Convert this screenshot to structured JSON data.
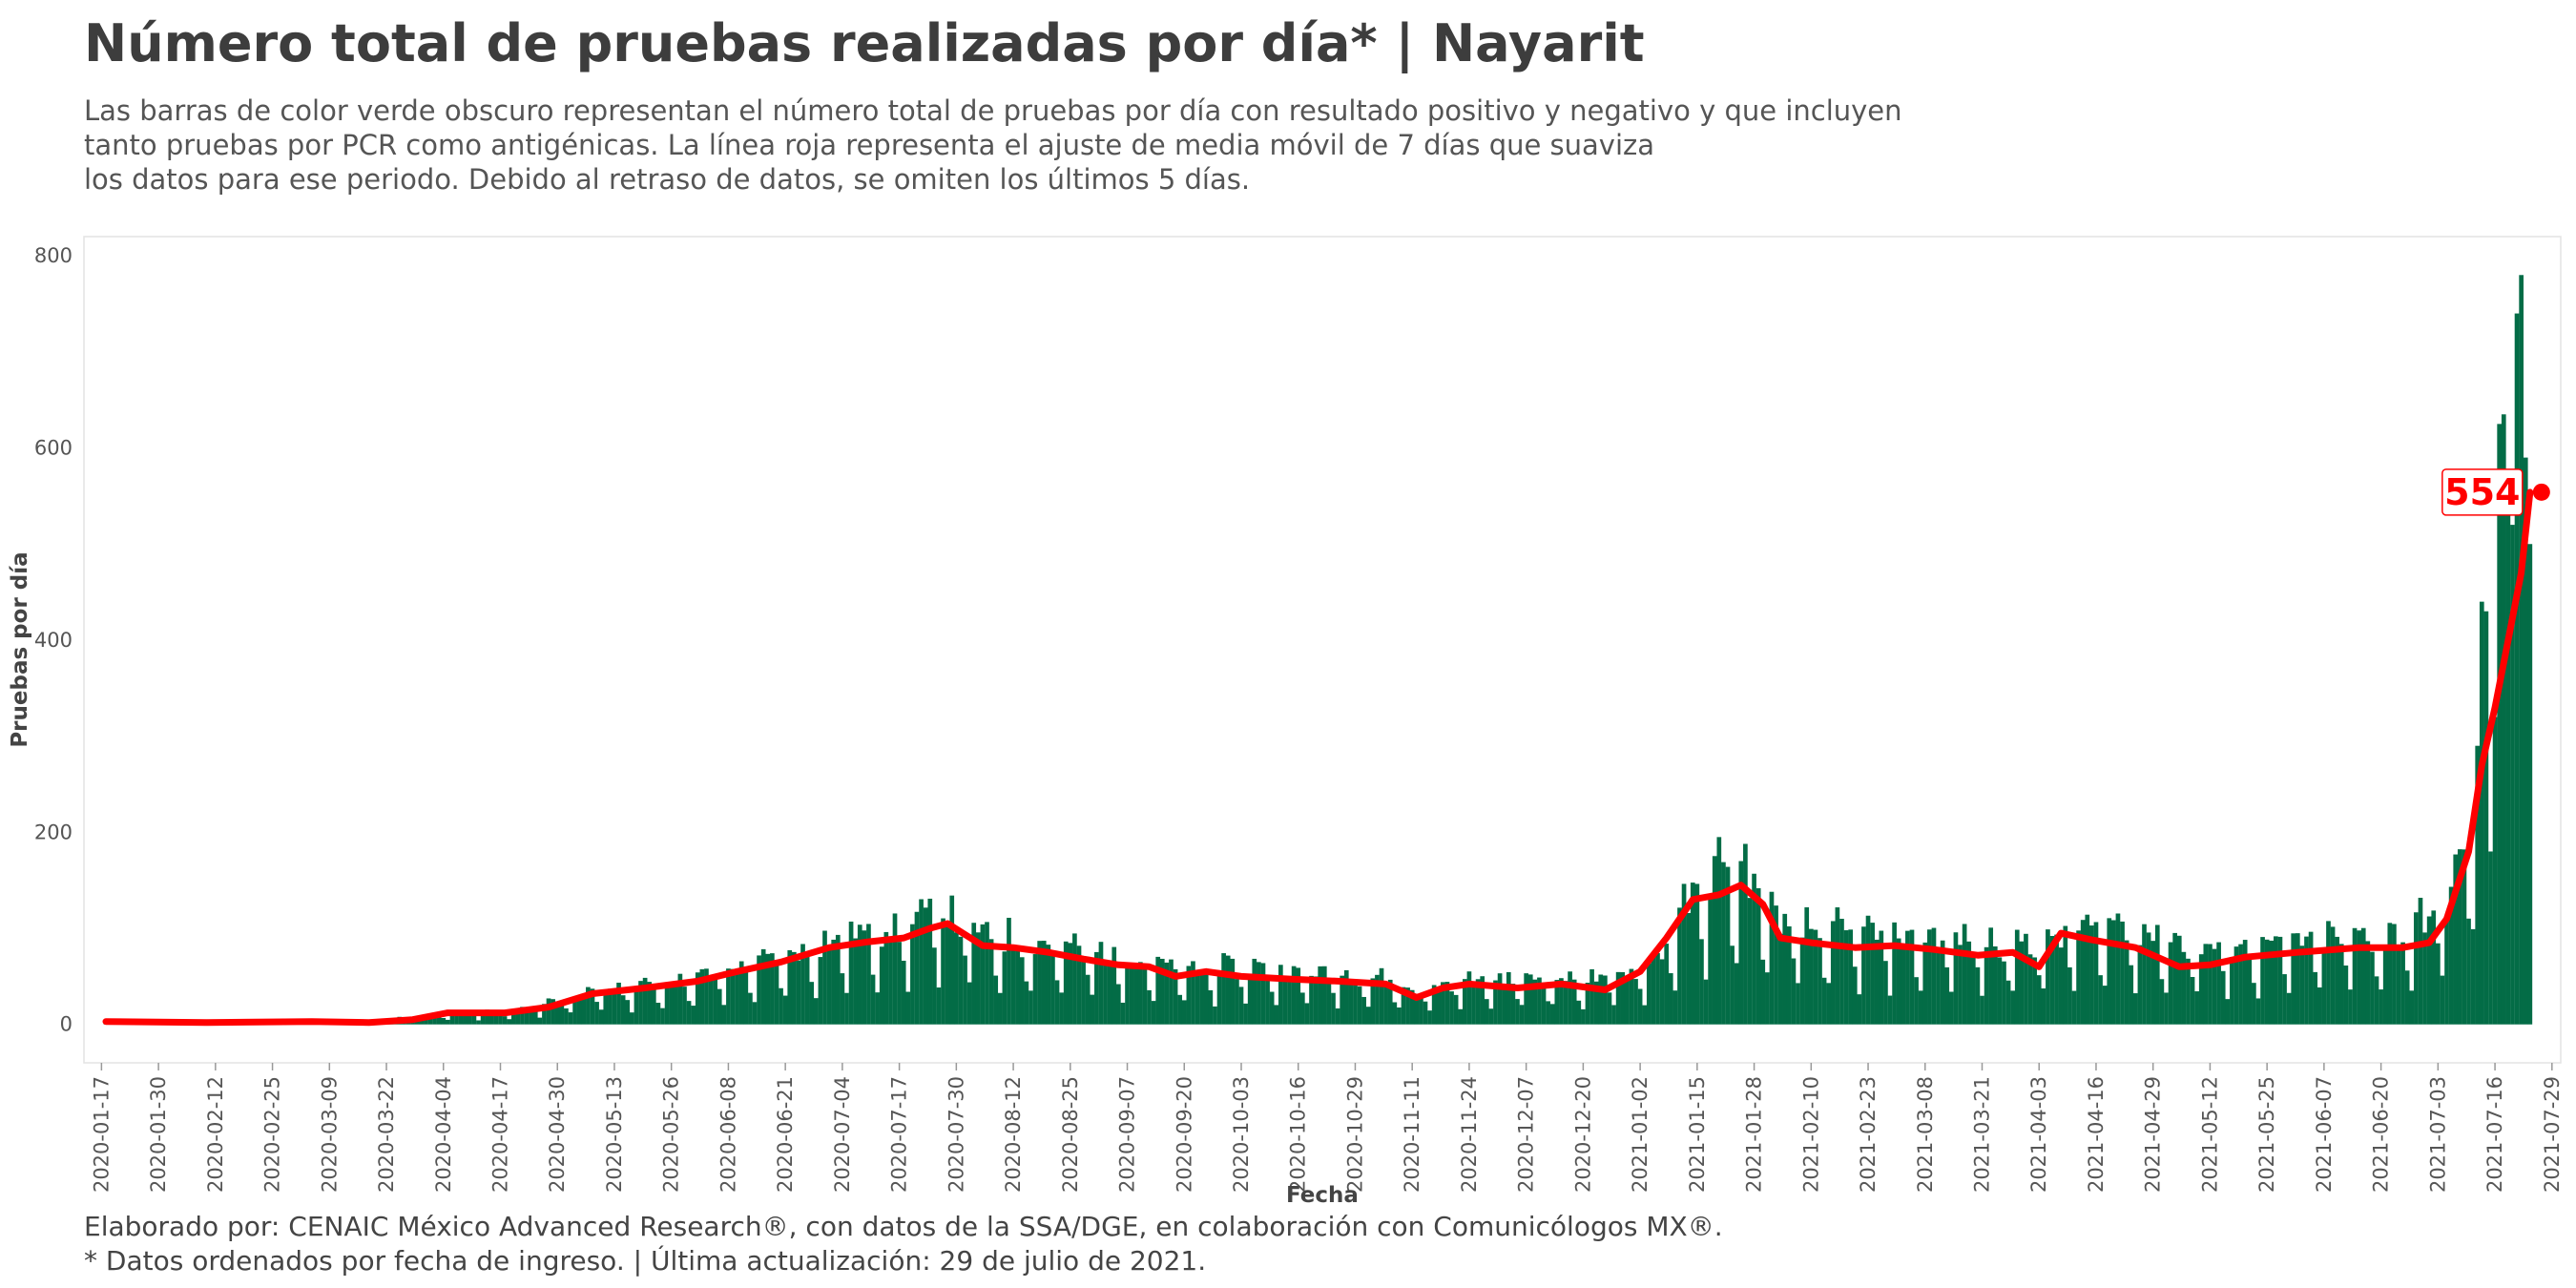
{
  "title": "Número total de pruebas realizadas por día* | Nayarit",
  "subtitle": "Las barras de color verde obscuro representan el número total de pruebas por día con resultado positivo y negativo y que incluyen\ntanto pruebas por PCR como antigénicas. La línea roja representa el ajuste de media móvil de 7 días que suaviza\nlos datos para ese periodo. Debido al retraso de datos, se omiten los últimos 5 días.",
  "caption": "Elaborado por: CENAIC México Advanced Research®, con datos de la SSA/DGE, en colaboración con Comunicólogos MX®.\n* Datos ordenados por fecha de ingreso. | Última actualización: 29 de julio de 2021.",
  "chart_data": {
    "type": "bar",
    "xlabel": "Fecha",
    "ylabel": "Pruebas por día",
    "x_start": "2020-01-18",
    "x_end": "2021-07-24",
    "xlim": [
      "2020-01-13",
      "2021-07-31"
    ],
    "ylim": [
      -40,
      820
    ],
    "yticks": [
      0,
      200,
      400,
      600,
      800
    ],
    "xticks": [
      "2020-01-17",
      "2020-01-30",
      "2020-02-12",
      "2020-02-25",
      "2020-03-09",
      "2020-03-22",
      "2020-04-04",
      "2020-04-17",
      "2020-04-30",
      "2020-05-13",
      "2020-05-26",
      "2020-06-08",
      "2020-06-21",
      "2020-07-04",
      "2020-07-17",
      "2020-07-30",
      "2020-08-12",
      "2020-08-25",
      "2020-09-07",
      "2020-09-20",
      "2020-10-03",
      "2020-10-16",
      "2020-10-29",
      "2020-11-11",
      "2020-11-24",
      "2020-12-07",
      "2020-12-20",
      "2021-01-02",
      "2021-01-15",
      "2021-01-28",
      "2021-02-10",
      "2021-02-23",
      "2021-03-08",
      "2021-03-21",
      "2021-04-03",
      "2021-04-16",
      "2021-04-29",
      "2021-05-12",
      "2021-05-25",
      "2021-06-07",
      "2021-06-20",
      "2021-07-03",
      "2021-07-16",
      "2021-07-29"
    ],
    "bar_color": "#036c46",
    "line_color": "#ff0000",
    "series": [
      {
        "name": "Pruebas por día",
        "kind": "bar",
        "trend_dates": [
          "2020-01-18",
          "2020-03-05",
          "2020-03-20",
          "2020-04-05",
          "2020-04-20",
          "2020-05-05",
          "2020-05-20",
          "2020-06-05",
          "2020-06-20",
          "2020-07-05",
          "2020-07-20",
          "2020-07-25",
          "2020-08-05",
          "2020-08-20",
          "2020-09-05",
          "2020-09-20",
          "2020-10-05",
          "2020-10-20",
          "2020-11-05",
          "2020-11-12",
          "2020-11-20",
          "2020-12-10",
          "2020-12-25",
          "2021-01-05",
          "2021-01-15",
          "2021-01-25",
          "2021-02-05",
          "2021-02-20",
          "2021-03-10",
          "2021-03-25",
          "2021-04-05",
          "2021-04-20",
          "2021-05-10",
          "2021-05-25",
          "2021-06-10",
          "2021-06-25",
          "2021-07-05",
          "2021-07-10",
          "2021-07-15",
          "2021-07-20",
          "2021-07-24"
        ],
        "trend_values": [
          3,
          3,
          4,
          10,
          12,
          28,
          35,
          45,
          60,
          80,
          88,
          105,
          80,
          72,
          62,
          48,
          52,
          46,
          42,
          28,
          38,
          42,
          40,
          55,
          120,
          140,
          85,
          82,
          78,
          72,
          75,
          92,
          68,
          70,
          78,
          80,
          110,
          170,
          300,
          450,
          560
        ],
        "spikes": [
          [
            "2021-07-12",
            290
          ],
          [
            "2021-07-13",
            440
          ],
          [
            "2021-07-14",
            430
          ],
          [
            "2021-07-15",
            180
          ],
          [
            "2021-07-16",
            320
          ],
          [
            "2021-07-17",
            625
          ],
          [
            "2021-07-18",
            635
          ],
          [
            "2021-07-19",
            570
          ],
          [
            "2021-07-20",
            520
          ],
          [
            "2021-07-21",
            740
          ],
          [
            "2021-07-22",
            780
          ],
          [
            "2021-07-23",
            590
          ],
          [
            "2021-07-24",
            500
          ],
          [
            "2021-01-20",
            195
          ],
          [
            "2021-01-25",
            170
          ]
        ]
      },
      {
        "name": "Media móvil de 7 días",
        "kind": "line",
        "dates": [
          "2020-01-18",
          "2020-02-10",
          "2020-03-05",
          "2020-03-18",
          "2020-03-28",
          "2020-04-05",
          "2020-04-18",
          "2020-04-28",
          "2020-05-08",
          "2020-05-20",
          "2020-06-01",
          "2020-06-10",
          "2020-06-20",
          "2020-07-01",
          "2020-07-10",
          "2020-07-18",
          "2020-07-24",
          "2020-07-28",
          "2020-08-05",
          "2020-08-12",
          "2020-08-20",
          "2020-08-28",
          "2020-09-05",
          "2020-09-12",
          "2020-09-18",
          "2020-09-25",
          "2020-10-03",
          "2020-10-15",
          "2020-10-25",
          "2020-11-05",
          "2020-11-12",
          "2020-11-18",
          "2020-11-24",
          "2020-12-05",
          "2020-12-15",
          "2020-12-25",
          "2021-01-02",
          "2021-01-08",
          "2021-01-14",
          "2021-01-20",
          "2021-01-25",
          "2021-01-30",
          "2021-02-03",
          "2021-02-10",
          "2021-02-20",
          "2021-03-01",
          "2021-03-10",
          "2021-03-20",
          "2021-03-28",
          "2021-04-03",
          "2021-04-08",
          "2021-04-15",
          "2021-04-25",
          "2021-05-05",
          "2021-05-12",
          "2021-05-20",
          "2021-06-01",
          "2021-06-15",
          "2021-06-25",
          "2021-07-01",
          "2021-07-05",
          "2021-07-10",
          "2021-07-13",
          "2021-07-16",
          "2021-07-19",
          "2021-07-22",
          "2021-07-24"
        ],
        "values": [
          3,
          2,
          3,
          2,
          5,
          12,
          12,
          18,
          32,
          38,
          45,
          55,
          65,
          80,
          86,
          90,
          100,
          105,
          82,
          80,
          75,
          68,
          62,
          60,
          50,
          55,
          50,
          47,
          45,
          42,
          28,
          38,
          42,
          38,
          42,
          36,
          55,
          90,
          130,
          135,
          145,
          125,
          90,
          85,
          80,
          82,
          78,
          72,
          75,
          60,
          95,
          88,
          80,
          60,
          62,
          70,
          75,
          80,
          80,
          85,
          110,
          180,
          270,
          330,
          400,
          470,
          554
        ]
      }
    ],
    "annotation": {
      "date": "2021-07-24",
      "value": 554,
      "label": "554"
    }
  }
}
